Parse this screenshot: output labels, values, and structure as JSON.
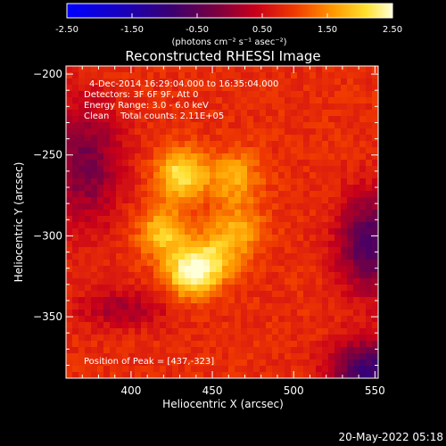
{
  "chart_data": {
    "type": "heatmap",
    "title": "Reconstructed RHESSI Image",
    "info_lines": [
      "4-Dec-2014 16:29:04.000 to 16:35:04.000",
      "Detectors: 3F 6F 9F, Att 0",
      "Energy Range: 3.0 - 6.0 keV",
      "Clean    Total counts: 2.11E+05"
    ],
    "peak_label": "Position of Peak = [437,-323]",
    "peak": [
      437,
      -323
    ],
    "xlabel": "Heliocentric X (arcsec)",
    "ylabel": "Heliocentric Y (arcsec)",
    "xlim": [
      360,
      552
    ],
    "ylim": [
      -388,
      -195
    ],
    "x_ticks": [
      400,
      450,
      500,
      550
    ],
    "y_ticks": [
      -200,
      -250,
      -300,
      -350
    ],
    "colorbar": {
      "ticks": [
        "-2.50",
        "-1.50",
        "-0.50",
        "0.50",
        "1.50",
        "2.50"
      ],
      "range": [
        -2.5,
        2.5
      ],
      "unit_label": "(photons cm⁻² s⁻¹ asec⁻²)"
    },
    "sources": [
      {
        "x": 431,
        "y": -262,
        "strength": 2.25
      },
      {
        "x": 437,
        "y": -323,
        "strength": 2.5
      },
      {
        "x": 420,
        "y": -298,
        "strength": 2.0
      },
      {
        "x": 464,
        "y": -264,
        "strength": 1.8
      },
      {
        "x": 466,
        "y": -296,
        "strength": 1.7
      },
      {
        "x": 452,
        "y": -313,
        "strength": 1.7
      }
    ]
  },
  "timestamp": "20-May-2022 05:18",
  "colors": {
    "background": "#000000",
    "text": "#ffffff"
  }
}
